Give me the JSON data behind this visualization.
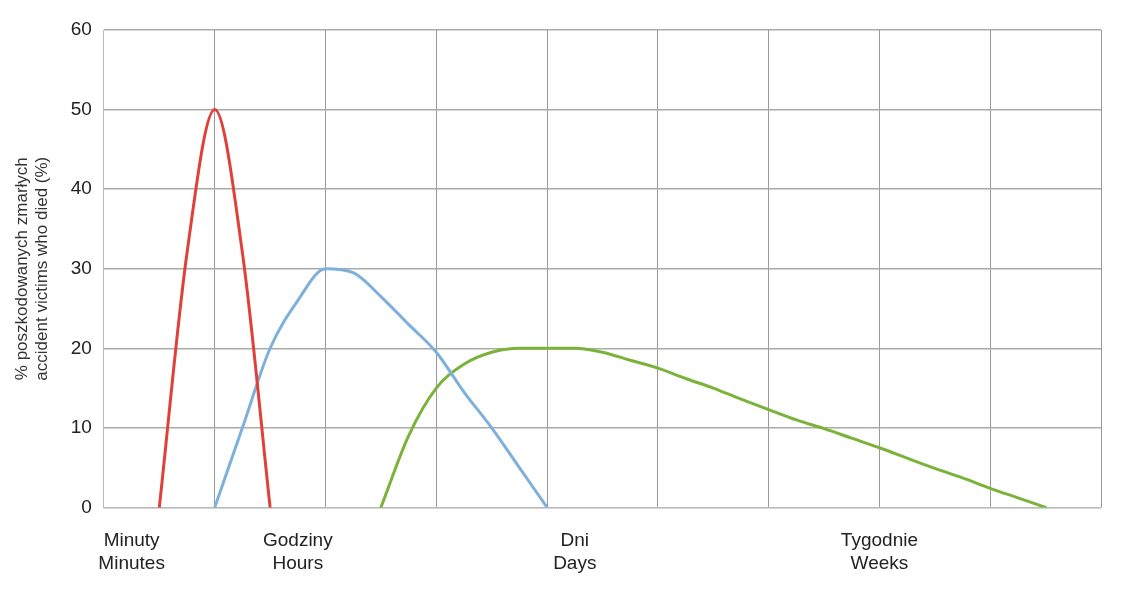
{
  "chart_data": {
    "type": "line",
    "ylabel": "% poszkodowanych zmarłych\naccident victims who died (%)",
    "categories": [
      null,
      "Minuty\nMinutes",
      null,
      null,
      null,
      null,
      null,
      "Godziny\nHours",
      null,
      null,
      null,
      null,
      null,
      null,
      null,
      null,
      null,
      "Dni\nDays",
      null,
      null,
      null,
      null,
      null,
      null,
      null,
      null,
      null,
      null,
      "Tygodnie\nWeeks",
      null,
      null,
      null,
      null,
      null,
      null,
      null,
      null
    ],
    "ylim": [
      0,
      60
    ],
    "yticks": [
      0,
      10,
      20,
      30,
      40,
      50,
      60
    ],
    "grid": true,
    "series": [
      {
        "color": "#e0403a",
        "values": [
          null,
          null,
          0,
          32,
          50,
          32,
          0,
          null,
          null,
          null,
          null,
          null,
          null,
          null,
          null,
          null,
          null,
          null,
          null,
          null,
          null,
          null,
          null,
          null,
          null,
          null,
          null,
          null,
          null,
          null,
          null,
          null,
          null,
          null,
          null,
          null,
          null
        ]
      },
      {
        "color": "#7eb0dc",
        "values": [
          null,
          null,
          null,
          null,
          0,
          10,
          20,
          26,
          30,
          29.5,
          26.5,
          23,
          19.5,
          14.5,
          10,
          5,
          0,
          null,
          null,
          null,
          null,
          null,
          null,
          null,
          null,
          null,
          null,
          null,
          null,
          null,
          null,
          null,
          null,
          null,
          null,
          null,
          null
        ]
      },
      {
        "color": "#7bb23a",
        "values": [
          null,
          null,
          null,
          null,
          null,
          null,
          null,
          null,
          null,
          null,
          0,
          9,
          15,
          18,
          19.5,
          20,
          20,
          20,
          19.5,
          18.5,
          17.5,
          16.2,
          15,
          13.6,
          12.3,
          11,
          9.9,
          8.7,
          7.5,
          6.2,
          4.9,
          3.7,
          2.4,
          1.2,
          0,
          null,
          null
        ]
      }
    ]
  }
}
